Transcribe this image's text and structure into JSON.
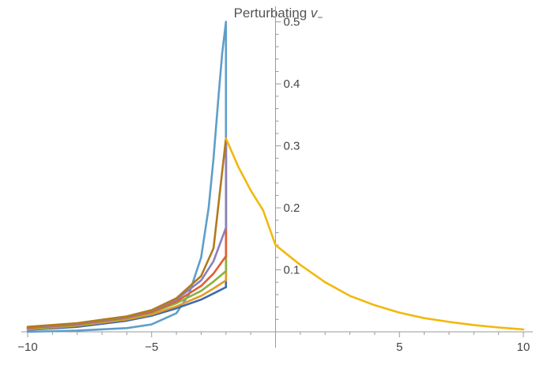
{
  "chart_data": {
    "type": "line",
    "title": "Perturbating ",
    "title_variable": "v",
    "title_subscript": "−",
    "xlabel": "",
    "ylabel": "",
    "xlim": [
      -10,
      10
    ],
    "ylim": [
      0,
      0.52
    ],
    "x_ticks": [
      {
        "value": -10,
        "label": "−10"
      },
      {
        "value": -5,
        "label": "−5"
      },
      {
        "value": 5,
        "label": "5"
      },
      {
        "value": 10,
        "label": "10"
      }
    ],
    "y_ticks": [
      {
        "value": 0.1,
        "label": "0.1"
      },
      {
        "value": 0.2,
        "label": "0.2"
      },
      {
        "value": 0.3,
        "label": "0.3"
      },
      {
        "value": 0.4,
        "label": "0.4"
      },
      {
        "value": 0.5,
        "label": "0.5"
      }
    ],
    "grid": false,
    "legend": "none",
    "jump_x": -2,
    "right_branch": {
      "color": "#f2b80f",
      "points": [
        [
          -2,
          0.312
        ],
        [
          -1.5,
          0.266
        ],
        [
          -1,
          0.228
        ],
        [
          -0.5,
          0.196
        ],
        [
          0,
          0.14
        ],
        [
          1,
          0.108
        ],
        [
          2,
          0.08
        ],
        [
          3,
          0.058
        ],
        [
          4,
          0.043
        ],
        [
          5,
          0.031
        ],
        [
          6,
          0.022
        ],
        [
          7,
          0.016
        ],
        [
          8,
          0.011
        ],
        [
          9,
          0.007
        ],
        [
          10,
          0.004
        ]
      ]
    },
    "series": [
      {
        "color": "#5e9ec9",
        "points": [
          [
            -10,
            0.0
          ],
          [
            -8,
            0.002
          ],
          [
            -6,
            0.006
          ],
          [
            -5,
            0.012
          ],
          [
            -4,
            0.03
          ],
          [
            -3.5,
            0.06
          ],
          [
            -3,
            0.12
          ],
          [
            -2.7,
            0.2
          ],
          [
            -2.5,
            0.28
          ],
          [
            -2.3,
            0.38
          ],
          [
            -2.15,
            0.45
          ],
          [
            -2,
            0.5
          ]
        ]
      },
      {
        "color": "#3f6aa8",
        "points": [
          [
            -10,
            0.003
          ],
          [
            -8,
            0.008
          ],
          [
            -6,
            0.018
          ],
          [
            -5,
            0.026
          ],
          [
            -4,
            0.038
          ],
          [
            -3,
            0.052
          ],
          [
            -2.5,
            0.062
          ],
          [
            -2,
            0.072
          ]
        ]
      },
      {
        "color": "#e19a2a",
        "points": [
          [
            -10,
            0.004
          ],
          [
            -8,
            0.01
          ],
          [
            -6,
            0.02
          ],
          [
            -5,
            0.028
          ],
          [
            -4,
            0.041
          ],
          [
            -3,
            0.058
          ],
          [
            -2.5,
            0.07
          ],
          [
            -2,
            0.083
          ]
        ]
      },
      {
        "color": "#8bb13f",
        "points": [
          [
            -10,
            0.005
          ],
          [
            -8,
            0.011
          ],
          [
            -6,
            0.022
          ],
          [
            -5,
            0.031
          ],
          [
            -4,
            0.046
          ],
          [
            -3,
            0.066
          ],
          [
            -2.5,
            0.081
          ],
          [
            -2,
            0.098
          ]
        ]
      },
      {
        "color": "#e05e33",
        "points": [
          [
            -10,
            0.006
          ],
          [
            -8,
            0.012
          ],
          [
            -6,
            0.023
          ],
          [
            -5,
            0.032
          ],
          [
            -4,
            0.049
          ],
          [
            -3,
            0.074
          ],
          [
            -2.5,
            0.094
          ],
          [
            -2,
            0.122
          ]
        ]
      },
      {
        "color": "#8b7fbc",
        "points": [
          [
            -10,
            0.007
          ],
          [
            -8,
            0.013
          ],
          [
            -6,
            0.024
          ],
          [
            -5,
            0.034
          ],
          [
            -4,
            0.052
          ],
          [
            -3,
            0.083
          ],
          [
            -2.5,
            0.114
          ],
          [
            -2,
            0.168
          ]
        ]
      },
      {
        "color": "#b27a1c",
        "points": [
          [
            -10,
            0.008
          ],
          [
            -8,
            0.014
          ],
          [
            -6,
            0.025
          ],
          [
            -5,
            0.035
          ],
          [
            -4,
            0.054
          ],
          [
            -3,
            0.09
          ],
          [
            -2.5,
            0.135
          ],
          [
            -2,
            0.312
          ]
        ]
      }
    ]
  }
}
